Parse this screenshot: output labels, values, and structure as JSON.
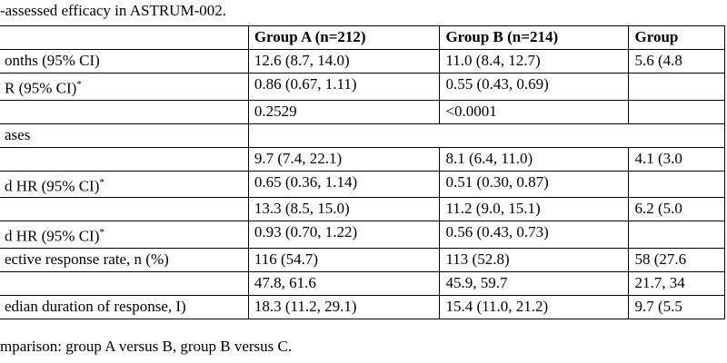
{
  "caption": "-assessed efficacy in ASTRUM-002.",
  "table": {
    "header": [
      "",
      "Group A (n=212)",
      "Group B (n=214)",
      "Group"
    ],
    "rows": [
      [
        "onths (95% CI)",
        "12.6 (8.7, 14.0)",
        "11.0 (8.4, 12.7)",
        "5.6 (4.8"
      ],
      [
        {
          "text": "R (95% CI)",
          "sup": "*"
        },
        "0.86 (0.67, 1.11)",
        "0.55 (0.43, 0.69)",
        ""
      ],
      [
        "",
        "0.2529",
        "<0.0001",
        ""
      ],
      [
        "ases"
      ],
      [
        "",
        "9.7 (7.4, 22.1)",
        "8.1 (6.4, 11.0)",
        "4.1 (3.0"
      ],
      [
        {
          "text": "d HR (95% CI)",
          "sup": "*"
        },
        "0.65 (0.36, 1.14)",
        "0.51 (0.30, 0.87)",
        ""
      ],
      [
        "",
        "13.3 (8.5, 15.0)",
        "11.2 (9.0, 15.1)",
        "6.2 (5.0"
      ],
      [
        {
          "text": "d HR (95% CI)",
          "sup": "*"
        },
        "0.93 (0.70, 1.22)",
        "0.56 (0.43, 0.73)",
        ""
      ],
      [
        "ective response rate, n (%)",
        "116 (54.7)",
        "113 (52.8)",
        "58 (27.6"
      ],
      [
        "",
        "47.8, 61.6",
        "45.9, 59.7",
        "21.7, 34"
      ],
      [
        "edian duration of response, I)",
        "18.3 (11.2, 29.1)",
        "15.4 (11.0, 21.2)",
        "9.7 (5.5"
      ]
    ]
  },
  "footnote": "mparison: group A versus B, group B versus C."
}
